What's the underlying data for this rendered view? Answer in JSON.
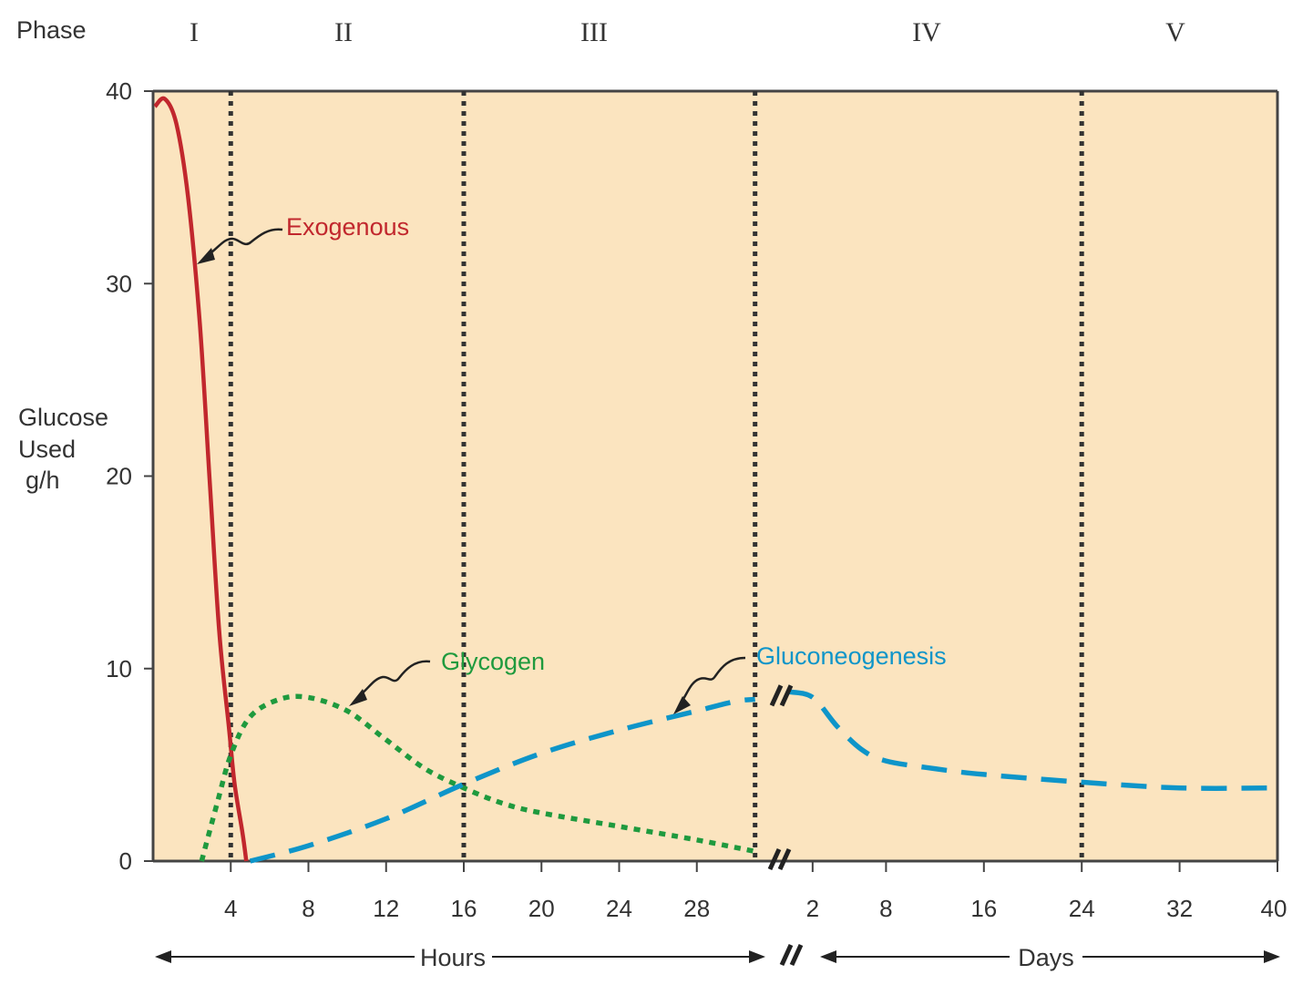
{
  "chart_data": {
    "type": "line",
    "title": "",
    "ylabel_lines": [
      "Glucose",
      "Used",
      "g/h"
    ],
    "ylim": [
      0,
      40
    ],
    "yticks": [
      0,
      10,
      20,
      30,
      40
    ],
    "phase_header": "Phase",
    "phases": [
      "I",
      "II",
      "III",
      "IV",
      "V"
    ],
    "hours_axis": {
      "label": "Hours",
      "range": [
        0,
        32
      ],
      "ticks": [
        4,
        8,
        12,
        16,
        20,
        24,
        28
      ]
    },
    "days_axis": {
      "label": "Days",
      "range": [
        0,
        40
      ],
      "ticks": [
        2,
        8,
        16,
        24,
        32,
        40
      ]
    },
    "axis_break_symbol": "//",
    "phase_boundaries": [
      {
        "axis": "hours",
        "value": 4
      },
      {
        "axis": "hours",
        "value": 16
      },
      {
        "axis": "hours",
        "value": 31
      },
      {
        "axis": "days",
        "value": 24
      }
    ],
    "series": [
      {
        "name": "Exogenous",
        "color": "#c1272d",
        "style": "solid",
        "points": [
          {
            "axis": "hours",
            "x": 0.1,
            "y": 39.2
          },
          {
            "axis": "hours",
            "x": 0.6,
            "y": 39.6
          },
          {
            "axis": "hours",
            "x": 1.2,
            "y": 38.3
          },
          {
            "axis": "hours",
            "x": 1.8,
            "y": 34.5
          },
          {
            "axis": "hours",
            "x": 2.4,
            "y": 28.0
          },
          {
            "axis": "hours",
            "x": 2.9,
            "y": 20.0
          },
          {
            "axis": "hours",
            "x": 3.4,
            "y": 12.0
          },
          {
            "axis": "hours",
            "x": 3.9,
            "y": 7.0
          },
          {
            "axis": "hours",
            "x": 4.2,
            "y": 4.0
          },
          {
            "axis": "hours",
            "x": 4.6,
            "y": 1.5
          },
          {
            "axis": "hours",
            "x": 4.8,
            "y": 0.0
          }
        ]
      },
      {
        "name": "Glycogen",
        "color": "#1f9a3e",
        "style": "dotted",
        "points": [
          {
            "axis": "hours",
            "x": 2.5,
            "y": 0.0
          },
          {
            "axis": "hours",
            "x": 3.3,
            "y": 3.0
          },
          {
            "axis": "hours",
            "x": 4.0,
            "y": 5.5
          },
          {
            "axis": "hours",
            "x": 5.0,
            "y": 7.5
          },
          {
            "axis": "hours",
            "x": 6.5,
            "y": 8.4
          },
          {
            "axis": "hours",
            "x": 8.0,
            "y": 8.5
          },
          {
            "axis": "hours",
            "x": 10.0,
            "y": 7.8
          },
          {
            "axis": "hours",
            "x": 12.0,
            "y": 6.3
          },
          {
            "axis": "hours",
            "x": 14.0,
            "y": 4.8
          },
          {
            "axis": "hours",
            "x": 16.0,
            "y": 3.8
          },
          {
            "axis": "hours",
            "x": 18.0,
            "y": 3.0
          },
          {
            "axis": "hours",
            "x": 20.0,
            "y": 2.5
          },
          {
            "axis": "hours",
            "x": 24.0,
            "y": 1.8
          },
          {
            "axis": "hours",
            "x": 28.0,
            "y": 1.1
          },
          {
            "axis": "hours",
            "x": 31.0,
            "y": 0.5
          }
        ]
      },
      {
        "name": "Gluconeogenesis",
        "color": "#0e95c9",
        "style": "dashed",
        "points": [
          {
            "axis": "hours",
            "x": 5.0,
            "y": 0.0
          },
          {
            "axis": "hours",
            "x": 8.0,
            "y": 0.8
          },
          {
            "axis": "hours",
            "x": 12.0,
            "y": 2.2
          },
          {
            "axis": "hours",
            "x": 16.0,
            "y": 4.0
          },
          {
            "axis": "hours",
            "x": 20.0,
            "y": 5.6
          },
          {
            "axis": "hours",
            "x": 24.0,
            "y": 6.8
          },
          {
            "axis": "hours",
            "x": 28.0,
            "y": 7.8
          },
          {
            "axis": "hours",
            "x": 30.0,
            "y": 8.3
          },
          {
            "axis": "hours",
            "x": 31.0,
            "y": 8.4
          },
          {
            "axis": "days",
            "x": 0.0,
            "y": 8.8
          },
          {
            "axis": "days",
            "x": 2.0,
            "y": 8.5
          },
          {
            "axis": "days",
            "x": 4.0,
            "y": 7.0
          },
          {
            "axis": "days",
            "x": 6.0,
            "y": 5.8
          },
          {
            "axis": "days",
            "x": 8.0,
            "y": 5.2
          },
          {
            "axis": "days",
            "x": 12.0,
            "y": 4.8
          },
          {
            "axis": "days",
            "x": 16.0,
            "y": 4.5
          },
          {
            "axis": "days",
            "x": 24.0,
            "y": 4.1
          },
          {
            "axis": "days",
            "x": 32.0,
            "y": 3.8
          },
          {
            "axis": "days",
            "x": 40.0,
            "y": 3.8
          }
        ]
      }
    ]
  },
  "colors": {
    "plot_background": "#fbe4bf",
    "frame": "#444444",
    "phase_line": "#333333",
    "text": "#333333"
  }
}
